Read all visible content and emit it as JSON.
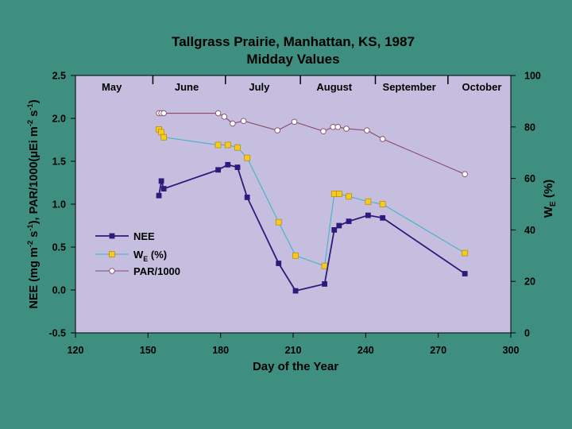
{
  "slide": {
    "background": "#3f8f80",
    "plot_background": "#c5bede"
  },
  "chart_data": {
    "type": "line",
    "title": "Tallgrass Prairie, Manhattan, KS, 1987",
    "subtitle": "Midday Values",
    "xlabel": "Day of the Year",
    "ylabel_left": {
      "main": "NEE (mg m",
      "sup1": "-2",
      "mid1": " s",
      "sup2": "-1",
      "mid2": "), PAR/1000(",
      "mu": "μ",
      "mid3": "Ei m",
      "sup3": "-2",
      "mid4": " s",
      "sup4": "-1",
      "end": ")"
    },
    "ylabel_right": {
      "main": "W",
      "sub": "E",
      "end": " (%)"
    },
    "xlim": [
      120,
      300
    ],
    "ylim_left": [
      -0.5,
      2.5
    ],
    "ylim_right": [
      0,
      100
    ],
    "xticks": [
      120,
      150,
      180,
      210,
      240,
      270,
      300
    ],
    "yticks_left": [
      "-0.5",
      "0.0",
      "0.5",
      "1.0",
      "1.5",
      "2.0",
      "2.5"
    ],
    "yticks_right": [
      "0",
      "20",
      "40",
      "60",
      "80",
      "100"
    ],
    "months": [
      {
        "label": "May",
        "x": 135
      },
      {
        "label": "June",
        "x": 166
      },
      {
        "label": "July",
        "x": 196
      },
      {
        "label": "August",
        "x": 227
      },
      {
        "label": "September",
        "x": 258
      },
      {
        "label": "October",
        "x": 288
      }
    ],
    "month_dividers": [
      152,
      182,
      213,
      244,
      274
    ],
    "legend": {
      "position": "left-middle",
      "items": [
        {
          "name": "NEE",
          "series": 0
        },
        {
          "name": "W",
          "sub": "E",
          "end": " (%)",
          "series": 1
        },
        {
          "name": "PAR/1000",
          "series": 2
        }
      ]
    },
    "series": [
      {
        "name": "NEE",
        "axis": "left",
        "color": "#2e1a7a",
        "marker": "square",
        "x": [
          154.5,
          155.5,
          156.5,
          179,
          183,
          187,
          191,
          204,
          211,
          223,
          227,
          229,
          233,
          241,
          247,
          281
        ],
        "y": [
          1.1,
          1.27,
          1.18,
          1.4,
          1.46,
          1.43,
          1.08,
          0.31,
          -0.01,
          0.07,
          0.7,
          0.75,
          0.8,
          0.87,
          0.84,
          0.19
        ]
      },
      {
        "name": "WE (%)",
        "axis": "right",
        "color": "#3fb4c8",
        "marker_fill": "#f5cc1e",
        "marker": "square",
        "x": [
          154.5,
          155.5,
          156.5,
          179,
          183,
          187,
          191,
          204,
          211,
          223,
          227,
          229,
          233,
          241,
          247,
          281
        ],
        "y": [
          79,
          78,
          76,
          73,
          73,
          72,
          68,
          43,
          30,
          26,
          54,
          54,
          53,
          51,
          50,
          31
        ]
      },
      {
        "name": "PAR/1000",
        "axis": "left",
        "color": "#8a4a6a",
        "marker_fill": "#ffffff",
        "marker": "circle",
        "x": [
          154.5,
          155.5,
          156.5,
          179,
          181.5,
          185,
          189.5,
          203.5,
          210.5,
          222.5,
          226.5,
          228.5,
          232,
          240.5,
          247,
          281
        ],
        "y": [
          2.06,
          2.06,
          2.06,
          2.06,
          2.02,
          1.94,
          1.97,
          1.86,
          1.96,
          1.85,
          1.9,
          1.9,
          1.88,
          1.86,
          1.76,
          1.35
        ]
      }
    ]
  }
}
